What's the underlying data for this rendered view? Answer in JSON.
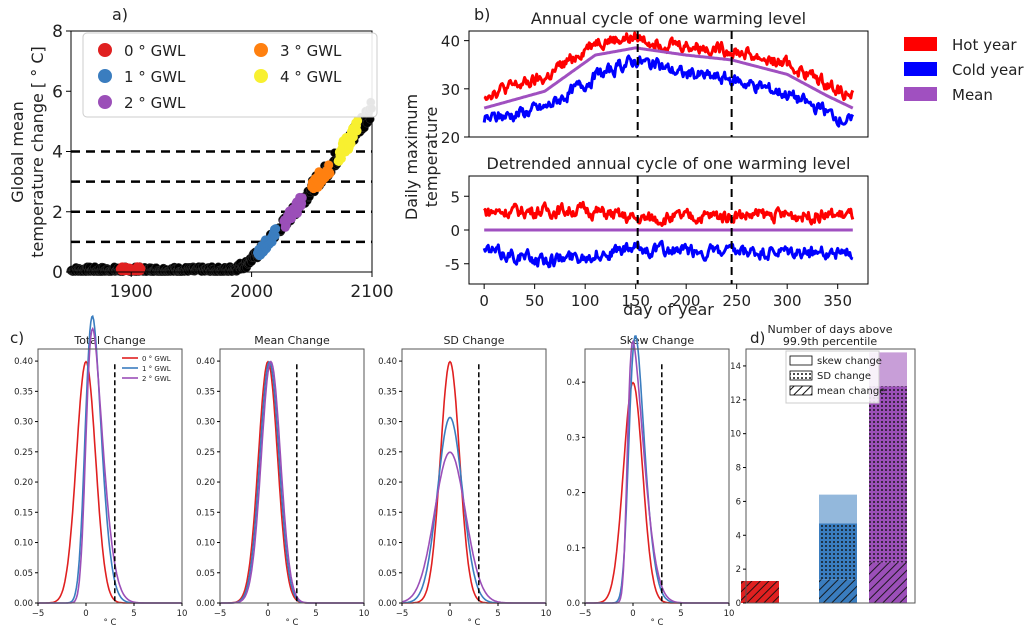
{
  "colors": {
    "gwl0": "#e02020",
    "gwl1": "#3a7dbf",
    "gwl2": "#9b4fb8",
    "gwl3": "#ff8010",
    "gwl4": "#f8f030",
    "hot": "#ff0000",
    "cold": "#0000ff",
    "mean": "#a050c0",
    "black": "#000000"
  },
  "chart_data": [
    {
      "id": "a",
      "type": "scatter",
      "panel_label": "a)",
      "ylabel_line1": "Global mean",
      "ylabel_line2": "temperature change [ ° C]",
      "xlim": [
        1850,
        2100
      ],
      "ylim": [
        0,
        8
      ],
      "xticks": [
        "1900",
        "2000",
        "2100"
      ],
      "xtick_values": [
        1900,
        2000,
        2100
      ],
      "yticks": [
        "0",
        "2",
        "4",
        "6",
        "8"
      ],
      "ytick_values": [
        0,
        2,
        4,
        6,
        8
      ],
      "hlines": [
        1,
        2,
        3,
        4
      ],
      "legend": [
        {
          "label": "0 ° GWL",
          "color": "gwl0"
        },
        {
          "label": "1 ° GWL",
          "color": "gwl1"
        },
        {
          "label": "2 ° GWL",
          "color": "gwl2"
        },
        {
          "label": "3 ° GWL",
          "color": "gwl3"
        },
        {
          "label": "4 ° GWL",
          "color": "gwl4"
        }
      ],
      "trend_points": [
        [
          1850,
          0.05
        ],
        [
          1980,
          0.05
        ],
        [
          1995,
          0.25
        ],
        [
          2005,
          0.6
        ],
        [
          2020,
          1.3
        ],
        [
          2035,
          2.0
        ],
        [
          2050,
          2.8
        ],
        [
          2065,
          3.5
        ],
        [
          2080,
          4.3
        ],
        [
          2100,
          5.5
        ]
      ],
      "segments": [
        {
          "color": "gwl0",
          "x": [
            1891,
            1908
          ]
        },
        {
          "color": "gwl1",
          "x": [
            2005,
            2020
          ]
        },
        {
          "color": "gwl2",
          "x": [
            2027,
            2042
          ]
        },
        {
          "color": "gwl3",
          "x": [
            2050,
            2065
          ]
        },
        {
          "color": "gwl4",
          "x": [
            2072,
            2088
          ]
        }
      ]
    },
    {
      "id": "b1",
      "type": "line",
      "panel_label": "b)",
      "title": "Annual cycle of one warming level",
      "xlim": [
        -15,
        380
      ],
      "ylim": [
        20,
        42
      ],
      "yticks": [
        "20",
        "30",
        "40"
      ],
      "ytick_values": [
        20,
        30,
        40
      ],
      "vlines": [
        152,
        245
      ],
      "series": [
        {
          "name": "Hot year",
          "color": "hot",
          "base": [
            [
              0,
              29
            ],
            [
              60,
              32
            ],
            [
              110,
              40
            ],
            [
              150,
              40.5
            ],
            [
              200,
              39
            ],
            [
              245,
              38
            ],
            [
              300,
              35
            ],
            [
              340,
              31
            ],
            [
              365,
              28.5
            ]
          ]
        },
        {
          "name": "Mean",
          "color": "mean",
          "base": [
            [
              0,
              26
            ],
            [
              60,
              29.5
            ],
            [
              110,
              37
            ],
            [
              150,
              38.5
            ],
            [
              200,
              37
            ],
            [
              245,
              36
            ],
            [
              300,
              33
            ],
            [
              340,
              28.5
            ],
            [
              365,
              26
            ]
          ]
        },
        {
          "name": "Cold year",
          "color": "cold",
          "base": [
            [
              0,
              23.5
            ],
            [
              60,
              26
            ],
            [
              110,
              32.5
            ],
            [
              150,
              36
            ],
            [
              200,
              33
            ],
            [
              245,
              32
            ],
            [
              300,
              29
            ],
            [
              340,
              25
            ],
            [
              365,
              23
            ]
          ]
        }
      ]
    },
    {
      "id": "b2",
      "type": "line",
      "title": "Detrended annual cycle of one warming level",
      "ylabel_line1": "Daily maximum",
      "ylabel_line2": "temperature",
      "xlabel": "day of year",
      "xlim": [
        -15,
        380
      ],
      "ylim": [
        -8,
        8
      ],
      "xticks": [
        "0",
        "50",
        "100",
        "150",
        "200",
        "250",
        "300",
        "350"
      ],
      "xtick_values": [
        0,
        50,
        100,
        150,
        200,
        250,
        300,
        350
      ],
      "yticks": [
        "-5",
        "0",
        "5"
      ],
      "ytick_values": [
        -5,
        0,
        5
      ],
      "vlines": [
        152,
        245
      ],
      "series": [
        {
          "name": "Hot year",
          "color": "hot",
          "base": [
            [
              0,
              2.7
            ],
            [
              100,
              3.0
            ],
            [
              150,
              1.6
            ],
            [
              250,
              2.2
            ],
            [
              365,
              2.2
            ]
          ]
        },
        {
          "name": "Mean",
          "color": "mean",
          "base": [
            [
              0,
              0
            ],
            [
              365,
              0
            ]
          ]
        },
        {
          "name": "Cold year",
          "color": "cold",
          "base": [
            [
              0,
              -3.0
            ],
            [
              60,
              -4.5
            ],
            [
              150,
              -2.8
            ],
            [
              250,
              -3.5
            ],
            [
              365,
              -3.3
            ]
          ]
        }
      ]
    },
    {
      "id": "c1",
      "type": "line",
      "panel_label": "c)",
      "title": "Total Change",
      "xlabel": "° C",
      "xlim": [
        -5,
        10
      ],
      "ylim": [
        0,
        0.42
      ],
      "xticks": [
        "−5",
        "0",
        "5",
        "10"
      ],
      "xtick_values": [
        -5,
        0,
        5,
        10
      ],
      "yticks": [
        "0.00",
        "0.05",
        "0.10",
        "0.15",
        "0.20",
        "0.25",
        "0.30",
        "0.35",
        "0.40"
      ],
      "ytick_values": [
        0,
        0.05,
        0.1,
        0.15,
        0.2,
        0.25,
        0.3,
        0.35,
        0.4
      ],
      "vline": 3,
      "legend": [
        {
          "label": "0 ° GWL",
          "color": "gwl0"
        },
        {
          "label": "1 ° GWL",
          "color": "gwl1"
        },
        {
          "label": "2 ° GWL",
          "color": "gwl2"
        }
      ],
      "series": [
        {
          "color": "gwl0",
          "mu": 0,
          "sd": 1,
          "alpha": 0
        },
        {
          "color": "gwl1",
          "mu": 0,
          "sd": 1.25,
          "alpha": 2
        },
        {
          "color": "gwl2",
          "mu": 0,
          "sd": 1.45,
          "alpha": 3
        }
      ]
    },
    {
      "id": "c2",
      "type": "line",
      "title": "Mean Change",
      "xlabel": "° C",
      "xlim": [
        -5,
        10
      ],
      "ylim": [
        0,
        0.42
      ],
      "xticks": [
        "−5",
        "0",
        "5",
        "10"
      ],
      "xtick_values": [
        -5,
        0,
        5,
        10
      ],
      "yticks": [
        "0.00",
        "0.05",
        "0.10",
        "0.15",
        "0.20",
        "0.25",
        "0.30",
        "0.35",
        "0.40"
      ],
      "ytick_values": [
        0,
        0.05,
        0.1,
        0.15,
        0.2,
        0.25,
        0.3,
        0.35,
        0.4
      ],
      "vline": 3,
      "series": [
        {
          "color": "gwl0",
          "mu": 0,
          "sd": 1,
          "alpha": 0
        },
        {
          "color": "gwl1",
          "mu": 0.15,
          "sd": 1,
          "alpha": 0
        },
        {
          "color": "gwl2",
          "mu": 0.3,
          "sd": 1,
          "alpha": 0
        }
      ]
    },
    {
      "id": "c3",
      "type": "line",
      "title": "SD Change",
      "xlabel": "° C",
      "xlim": [
        -5,
        10
      ],
      "ylim": [
        0,
        0.42
      ],
      "xticks": [
        "−5",
        "0",
        "5",
        "10"
      ],
      "xtick_values": [
        -5,
        0,
        5,
        10
      ],
      "yticks": [
        "0.00",
        "0.05",
        "0.10",
        "0.15",
        "0.20",
        "0.25",
        "0.30",
        "0.35",
        "0.40"
      ],
      "ytick_values": [
        0,
        0.05,
        0.1,
        0.15,
        0.2,
        0.25,
        0.3,
        0.35,
        0.4
      ],
      "vline": 3,
      "series": [
        {
          "color": "gwl0",
          "mu": 0,
          "sd": 1,
          "alpha": 0
        },
        {
          "color": "gwl1",
          "mu": 0,
          "sd": 1.3,
          "alpha": 0
        },
        {
          "color": "gwl2",
          "mu": 0,
          "sd": 1.6,
          "alpha": 0
        }
      ]
    },
    {
      "id": "c4",
      "type": "line",
      "title": "Skew Change",
      "xlabel": "° C",
      "xlim": [
        -5,
        10
      ],
      "ylim": [
        0,
        0.46
      ],
      "xticks": [
        "−5",
        "0",
        "5",
        "10"
      ],
      "xtick_values": [
        -5,
        0,
        5,
        10
      ],
      "yticks": [
        "0.0",
        "0.1",
        "0.2",
        "0.3",
        "0.4"
      ],
      "ytick_values": [
        0,
        0.1,
        0.2,
        0.3,
        0.4
      ],
      "vline": 3,
      "series": [
        {
          "color": "gwl0",
          "mu": 0,
          "sd": 1,
          "alpha": 0
        },
        {
          "color": "gwl1",
          "mu": -0.4,
          "sd": 1.3,
          "alpha": 2.5
        },
        {
          "color": "gwl2",
          "mu": -0.6,
          "sd": 1.5,
          "alpha": 4.5
        }
      ]
    },
    {
      "id": "d",
      "type": "bar",
      "panel_label": "d)",
      "title_line1": "Number of days above",
      "title_line2": "99.9th percentile",
      "ylim": [
        0,
        15
      ],
      "yticks": [
        "0",
        "2",
        "4",
        "6",
        "8",
        "10",
        "12",
        "14"
      ],
      "ytick_values": [
        0,
        2,
        4,
        6,
        8,
        10,
        12,
        14
      ],
      "legend": [
        {
          "label": "skew change",
          "pattern": "none"
        },
        {
          "label": "SD change",
          "pattern": "dots"
        },
        {
          "label": "mean change",
          "pattern": "hatch"
        }
      ],
      "bars": [
        {
          "color": "gwl0",
          "mean": 1.3,
          "sd": 0,
          "skew": 0
        },
        {
          "color": "gwl1",
          "mean": 1.4,
          "sd": 3.3,
          "skew": 1.7
        },
        {
          "color": "gwl2",
          "mean": 2.4,
          "sd": 10.4,
          "skew": 2.0
        }
      ]
    }
  ],
  "legend_b": [
    {
      "label": "Hot year",
      "color": "hot"
    },
    {
      "label": "Cold year",
      "color": "cold"
    },
    {
      "label": "Mean",
      "color": "mean"
    }
  ]
}
